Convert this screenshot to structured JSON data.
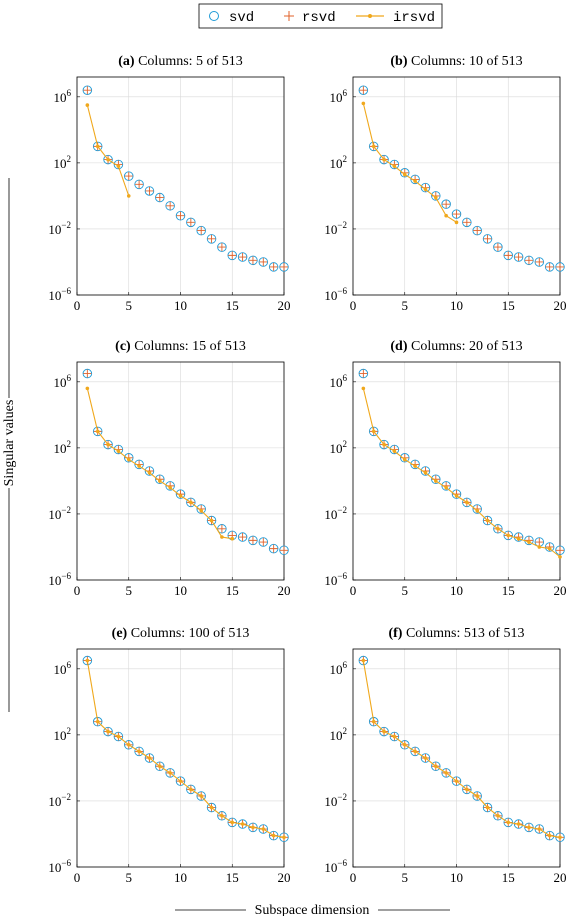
{
  "legend": {
    "items": [
      {
        "label": "svd",
        "marker": "circle",
        "color": "#1f9bd7"
      },
      {
        "label": "rsvd",
        "marker": "plus",
        "color": "#e0622a"
      },
      {
        "label": "irsvd",
        "marker": "line-dot",
        "color": "#f0a81c"
      }
    ]
  },
  "ylabel": "Singular values",
  "xlabel": "Subspace dimension",
  "chart_data": [
    {
      "type": "scatter",
      "tag": "(a)",
      "title": "Columns: 5 of 513",
      "xlim": [
        0,
        20
      ],
      "ylim": [
        -6,
        7.2
      ],
      "yscale": "log10",
      "xticks": [
        0,
        5,
        10,
        15,
        20
      ],
      "yticks": [
        {
          "exp": "6"
        },
        {
          "exp": "2"
        },
        {
          "exp": "−2"
        },
        {
          "exp": "−6"
        }
      ],
      "grid": true,
      "series": [
        {
          "name": "svd",
          "x": [
            1,
            2,
            3,
            4,
            5,
            6,
            7,
            8,
            9,
            10,
            11,
            12,
            13,
            14,
            15,
            16,
            17,
            18,
            19,
            20
          ],
          "y_log10": [
            6.4,
            3.0,
            2.2,
            1.9,
            1.2,
            0.7,
            0.3,
            -0.1,
            -0.6,
            -1.2,
            -1.6,
            -2.1,
            -2.6,
            -3.1,
            -3.6,
            -3.7,
            -3.9,
            -4.0,
            -4.3,
            -4.3
          ]
        },
        {
          "name": "rsvd",
          "x": [
            1,
            2,
            3,
            4,
            5,
            6,
            7,
            8,
            9,
            10,
            11,
            12,
            13,
            14,
            15,
            16,
            17,
            18,
            19,
            20
          ],
          "y_log10": [
            6.4,
            3.0,
            2.2,
            1.9,
            1.2,
            0.7,
            0.3,
            -0.1,
            -0.6,
            -1.2,
            -1.6,
            -2.1,
            -2.6,
            -3.1,
            -3.6,
            -3.7,
            -3.9,
            -4.0,
            -4.3,
            -4.3
          ]
        },
        {
          "name": "irsvd",
          "x": [
            1,
            2,
            3,
            4,
            5
          ],
          "y_log10": [
            5.5,
            3.0,
            2.2,
            1.8,
            0.0
          ]
        }
      ]
    },
    {
      "type": "scatter",
      "tag": "(b)",
      "title": "Columns: 10 of 513",
      "xlim": [
        0,
        20
      ],
      "ylim": [
        -6,
        7.2
      ],
      "yscale": "log10",
      "xticks": [
        0,
        5,
        10,
        15,
        20
      ],
      "yticks": [
        {
          "exp": "6"
        },
        {
          "exp": "2"
        },
        {
          "exp": "−2"
        },
        {
          "exp": "−6"
        }
      ],
      "grid": true,
      "series": [
        {
          "name": "svd",
          "x": [
            1,
            2,
            3,
            4,
            5,
            6,
            7,
            8,
            9,
            10,
            11,
            12,
            13,
            14,
            15,
            16,
            17,
            18,
            19,
            20
          ],
          "y_log10": [
            6.4,
            3.0,
            2.2,
            1.9,
            1.4,
            1.0,
            0.5,
            0.0,
            -0.5,
            -1.1,
            -1.6,
            -2.1,
            -2.6,
            -3.1,
            -3.6,
            -3.7,
            -3.9,
            -4.0,
            -4.3,
            -4.3
          ]
        },
        {
          "name": "rsvd",
          "x": [
            1,
            2,
            3,
            4,
            5,
            6,
            7,
            8,
            9,
            10,
            11,
            12,
            13,
            14,
            15,
            16,
            17,
            18,
            19,
            20
          ],
          "y_log10": [
            6.4,
            3.0,
            2.2,
            1.9,
            1.4,
            1.0,
            0.5,
            0.0,
            -0.5,
            -1.1,
            -1.6,
            -2.1,
            -2.6,
            -3.1,
            -3.6,
            -3.7,
            -3.9,
            -4.0,
            -4.3,
            -4.3
          ]
        },
        {
          "name": "irsvd",
          "x": [
            1,
            2,
            3,
            4,
            5,
            6,
            7,
            8,
            9,
            10
          ],
          "y_log10": [
            5.6,
            3.0,
            2.2,
            1.8,
            1.3,
            0.9,
            0.4,
            -0.1,
            -1.2,
            -1.6
          ]
        }
      ]
    },
    {
      "type": "scatter",
      "tag": "(c)",
      "title": "Columns: 15 of 513",
      "xlim": [
        0,
        20
      ],
      "ylim": [
        -6,
        7.2
      ],
      "yscale": "log10",
      "xticks": [
        0,
        5,
        10,
        15,
        20
      ],
      "yticks": [
        {
          "exp": "6"
        },
        {
          "exp": "2"
        },
        {
          "exp": "−2"
        },
        {
          "exp": "−6"
        }
      ],
      "grid": true,
      "series": [
        {
          "name": "svd",
          "x": [
            1,
            2,
            3,
            4,
            5,
            6,
            7,
            8,
            9,
            10,
            11,
            12,
            13,
            14,
            15,
            16,
            17,
            18,
            19,
            20
          ],
          "y_log10": [
            6.5,
            3.0,
            2.2,
            1.9,
            1.4,
            1.0,
            0.6,
            0.1,
            -0.3,
            -0.8,
            -1.3,
            -1.7,
            -2.4,
            -2.9,
            -3.3,
            -3.4,
            -3.6,
            -3.7,
            -4.1,
            -4.2
          ]
        },
        {
          "name": "rsvd",
          "x": [
            1,
            2,
            3,
            4,
            5,
            6,
            7,
            8,
            9,
            10,
            11,
            12,
            13,
            14,
            15,
            16,
            17,
            18,
            19,
            20
          ],
          "y_log10": [
            6.5,
            3.0,
            2.2,
            1.9,
            1.4,
            1.0,
            0.6,
            0.1,
            -0.3,
            -0.8,
            -1.3,
            -1.7,
            -2.4,
            -2.9,
            -3.3,
            -3.4,
            -3.6,
            -3.7,
            -4.1,
            -4.2
          ]
        },
        {
          "name": "irsvd",
          "x": [
            1,
            2,
            3,
            4,
            5,
            6,
            7,
            8,
            9,
            10,
            11,
            12,
            13,
            14,
            15
          ],
          "y_log10": [
            5.6,
            3.0,
            2.2,
            1.8,
            1.3,
            0.9,
            0.5,
            0.0,
            -0.4,
            -0.9,
            -1.3,
            -1.8,
            -2.4,
            -3.4,
            -3.5
          ]
        }
      ]
    },
    {
      "type": "scatter",
      "tag": "(d)",
      "title": "Columns: 20 of 513",
      "xlim": [
        0,
        20
      ],
      "ylim": [
        -6,
        7.2
      ],
      "yscale": "log10",
      "xticks": [
        0,
        5,
        10,
        15,
        20
      ],
      "yticks": [
        {
          "exp": "6"
        },
        {
          "exp": "2"
        },
        {
          "exp": "−2"
        },
        {
          "exp": "−6"
        }
      ],
      "grid": true,
      "series": [
        {
          "name": "svd",
          "x": [
            1,
            2,
            3,
            4,
            5,
            6,
            7,
            8,
            9,
            10,
            11,
            12,
            13,
            14,
            15,
            16,
            17,
            18,
            19,
            20
          ],
          "y_log10": [
            6.5,
            3.0,
            2.2,
            1.9,
            1.4,
            1.0,
            0.6,
            0.1,
            -0.3,
            -0.8,
            -1.3,
            -1.7,
            -2.4,
            -2.9,
            -3.3,
            -3.4,
            -3.6,
            -3.7,
            -4.0,
            -4.2
          ]
        },
        {
          "name": "rsvd",
          "x": [
            1,
            2,
            3,
            4,
            5,
            6,
            7,
            8,
            9,
            10,
            11,
            12,
            13,
            14,
            15,
            16,
            17,
            18,
            19,
            20
          ],
          "y_log10": [
            6.5,
            3.0,
            2.2,
            1.9,
            1.4,
            1.0,
            0.6,
            0.1,
            -0.3,
            -0.8,
            -1.3,
            -1.7,
            -2.4,
            -2.9,
            -3.3,
            -3.4,
            -3.6,
            -3.7,
            -4.0,
            -4.2
          ]
        },
        {
          "name": "irsvd",
          "x": [
            1,
            2,
            3,
            4,
            5,
            6,
            7,
            8,
            9,
            10,
            11,
            12,
            13,
            14,
            15,
            16,
            17,
            18,
            19,
            20
          ],
          "y_log10": [
            5.6,
            3.0,
            2.2,
            1.8,
            1.3,
            0.9,
            0.5,
            0.0,
            -0.4,
            -0.9,
            -1.3,
            -1.8,
            -2.4,
            -2.9,
            -3.3,
            -3.5,
            -3.7,
            -4.0,
            -4.1,
            -4.6
          ]
        }
      ]
    },
    {
      "type": "scatter",
      "tag": "(e)",
      "title": "Columns: 100 of 513",
      "xlim": [
        0,
        20
      ],
      "ylim": [
        -6,
        7.2
      ],
      "yscale": "log10",
      "xticks": [
        0,
        5,
        10,
        15,
        20
      ],
      "yticks": [
        {
          "exp": "6"
        },
        {
          "exp": "2"
        },
        {
          "exp": "−2"
        },
        {
          "exp": "−6"
        }
      ],
      "grid": true,
      "series": [
        {
          "name": "svd",
          "x": [
            1,
            2,
            3,
            4,
            5,
            6,
            7,
            8,
            9,
            10,
            11,
            12,
            13,
            14,
            15,
            16,
            17,
            18,
            19,
            20
          ],
          "y_log10": [
            6.5,
            2.8,
            2.2,
            1.9,
            1.4,
            1.0,
            0.6,
            0.1,
            -0.3,
            -0.8,
            -1.3,
            -1.7,
            -2.4,
            -2.9,
            -3.3,
            -3.4,
            -3.6,
            -3.7,
            -4.1,
            -4.2
          ]
        },
        {
          "name": "rsvd",
          "x": [
            1,
            2,
            3,
            4,
            5,
            6,
            7,
            8,
            9,
            10,
            11,
            12,
            13,
            14,
            15,
            16,
            17,
            18,
            19,
            20
          ],
          "y_log10": [
            6.5,
            2.8,
            2.2,
            1.9,
            1.4,
            1.0,
            0.6,
            0.1,
            -0.3,
            -0.8,
            -1.3,
            -1.7,
            -2.4,
            -2.9,
            -3.3,
            -3.4,
            -3.6,
            -3.7,
            -4.1,
            -4.2
          ]
        },
        {
          "name": "irsvd",
          "x": [
            1,
            2,
            3,
            4,
            5,
            6,
            7,
            8,
            9,
            10,
            11,
            12,
            13,
            14,
            15,
            16,
            17,
            18,
            19,
            20
          ],
          "y_log10": [
            6.5,
            2.8,
            2.2,
            1.9,
            1.4,
            1.0,
            0.6,
            0.1,
            -0.3,
            -0.8,
            -1.3,
            -1.7,
            -2.4,
            -2.9,
            -3.3,
            -3.4,
            -3.6,
            -3.7,
            -4.1,
            -4.2
          ]
        }
      ]
    },
    {
      "type": "scatter",
      "tag": "(f)",
      "title": "Columns: 513 of 513",
      "xlim": [
        0,
        20
      ],
      "ylim": [
        -6,
        7.2
      ],
      "yscale": "log10",
      "xticks": [
        0,
        5,
        10,
        15,
        20
      ],
      "yticks": [
        {
          "exp": "6"
        },
        {
          "exp": "2"
        },
        {
          "exp": "−2"
        },
        {
          "exp": "−6"
        }
      ],
      "grid": true,
      "series": [
        {
          "name": "svd",
          "x": [
            1,
            2,
            3,
            4,
            5,
            6,
            7,
            8,
            9,
            10,
            11,
            12,
            13,
            14,
            15,
            16,
            17,
            18,
            19,
            20
          ],
          "y_log10": [
            6.5,
            2.8,
            2.2,
            1.9,
            1.4,
            1.0,
            0.6,
            0.1,
            -0.3,
            -0.8,
            -1.3,
            -1.7,
            -2.4,
            -2.9,
            -3.3,
            -3.4,
            -3.6,
            -3.7,
            -4.1,
            -4.2
          ]
        },
        {
          "name": "rsvd",
          "x": [
            1,
            2,
            3,
            4,
            5,
            6,
            7,
            8,
            9,
            10,
            11,
            12,
            13,
            14,
            15,
            16,
            17,
            18,
            19,
            20
          ],
          "y_log10": [
            6.5,
            2.8,
            2.2,
            1.9,
            1.4,
            1.0,
            0.6,
            0.1,
            -0.3,
            -0.8,
            -1.3,
            -1.7,
            -2.4,
            -2.9,
            -3.3,
            -3.4,
            -3.6,
            -3.7,
            -4.1,
            -4.2
          ]
        },
        {
          "name": "irsvd",
          "x": [
            1,
            2,
            3,
            4,
            5,
            6,
            7,
            8,
            9,
            10,
            11,
            12,
            13,
            14,
            15,
            16,
            17,
            18,
            19,
            20
          ],
          "y_log10": [
            6.5,
            2.8,
            2.2,
            1.9,
            1.4,
            1.0,
            0.6,
            0.1,
            -0.3,
            -0.8,
            -1.3,
            -1.7,
            -2.4,
            -2.9,
            -3.3,
            -3.4,
            -3.6,
            -3.7,
            -4.1,
            -4.2
          ]
        }
      ]
    }
  ]
}
